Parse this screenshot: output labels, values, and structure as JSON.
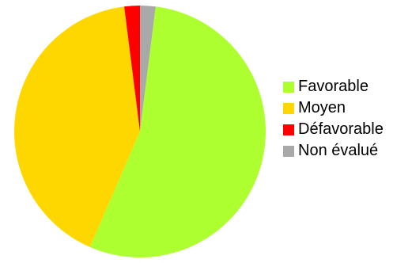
{
  "chart_data": {
    "type": "pie",
    "categories": [
      "Favorable",
      "Moyen",
      "Défavorable",
      "Non évalué"
    ],
    "values": [
      54.5,
      41.5,
      2,
      2
    ],
    "colors": [
      "#adff2f",
      "#ffd700",
      "#ff0000",
      "#a9a9a9"
    ],
    "start_category": "Non évalué",
    "direction": "clockwise-from-top",
    "legend_position": "right"
  }
}
